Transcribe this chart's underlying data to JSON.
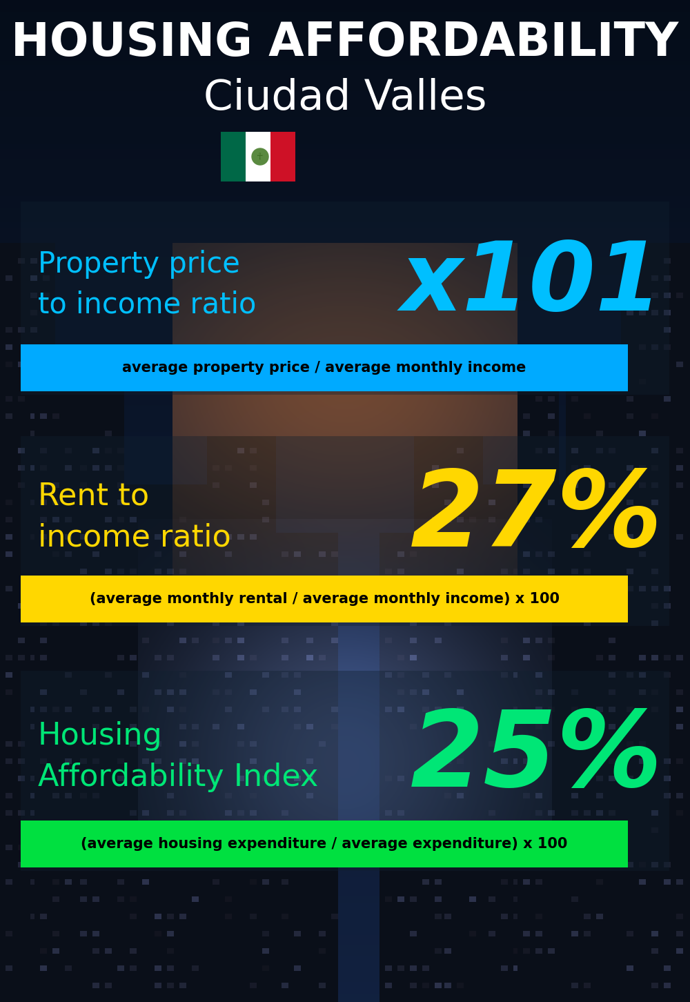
{
  "title_line1": "HOUSING AFFORDABILITY",
  "title_line2": "Ciudad Valles",
  "bg_color": "#050d18",
  "section1_label": "Property price\nto income ratio",
  "section1_value": "x101",
  "section1_label_color": "#00bfff",
  "section1_value_color": "#00bfff",
  "section1_banner": "average property price / average monthly income",
  "section1_banner_bg": "#00aaff",
  "section2_label": "Rent to\nincome ratio",
  "section2_value": "27%",
  "section2_label_color": "#ffd700",
  "section2_value_color": "#ffd700",
  "section2_banner": "(average monthly rental / average monthly income) x 100",
  "section2_banner_bg": "#ffd700",
  "section3_label": "Housing\nAffordability Index",
  "section3_value": "25%",
  "section3_label_color": "#00e676",
  "section3_value_color": "#00e676",
  "section3_banner": "(average housing expenditure / average expenditure) x 100",
  "section3_banner_bg": "#00e040",
  "title_color": "#ffffff",
  "subtitle_color": "#ffffff",
  "banner_text_color": "#000000",
  "fig_width": 10.0,
  "fig_height": 14.52,
  "dpi": 100
}
